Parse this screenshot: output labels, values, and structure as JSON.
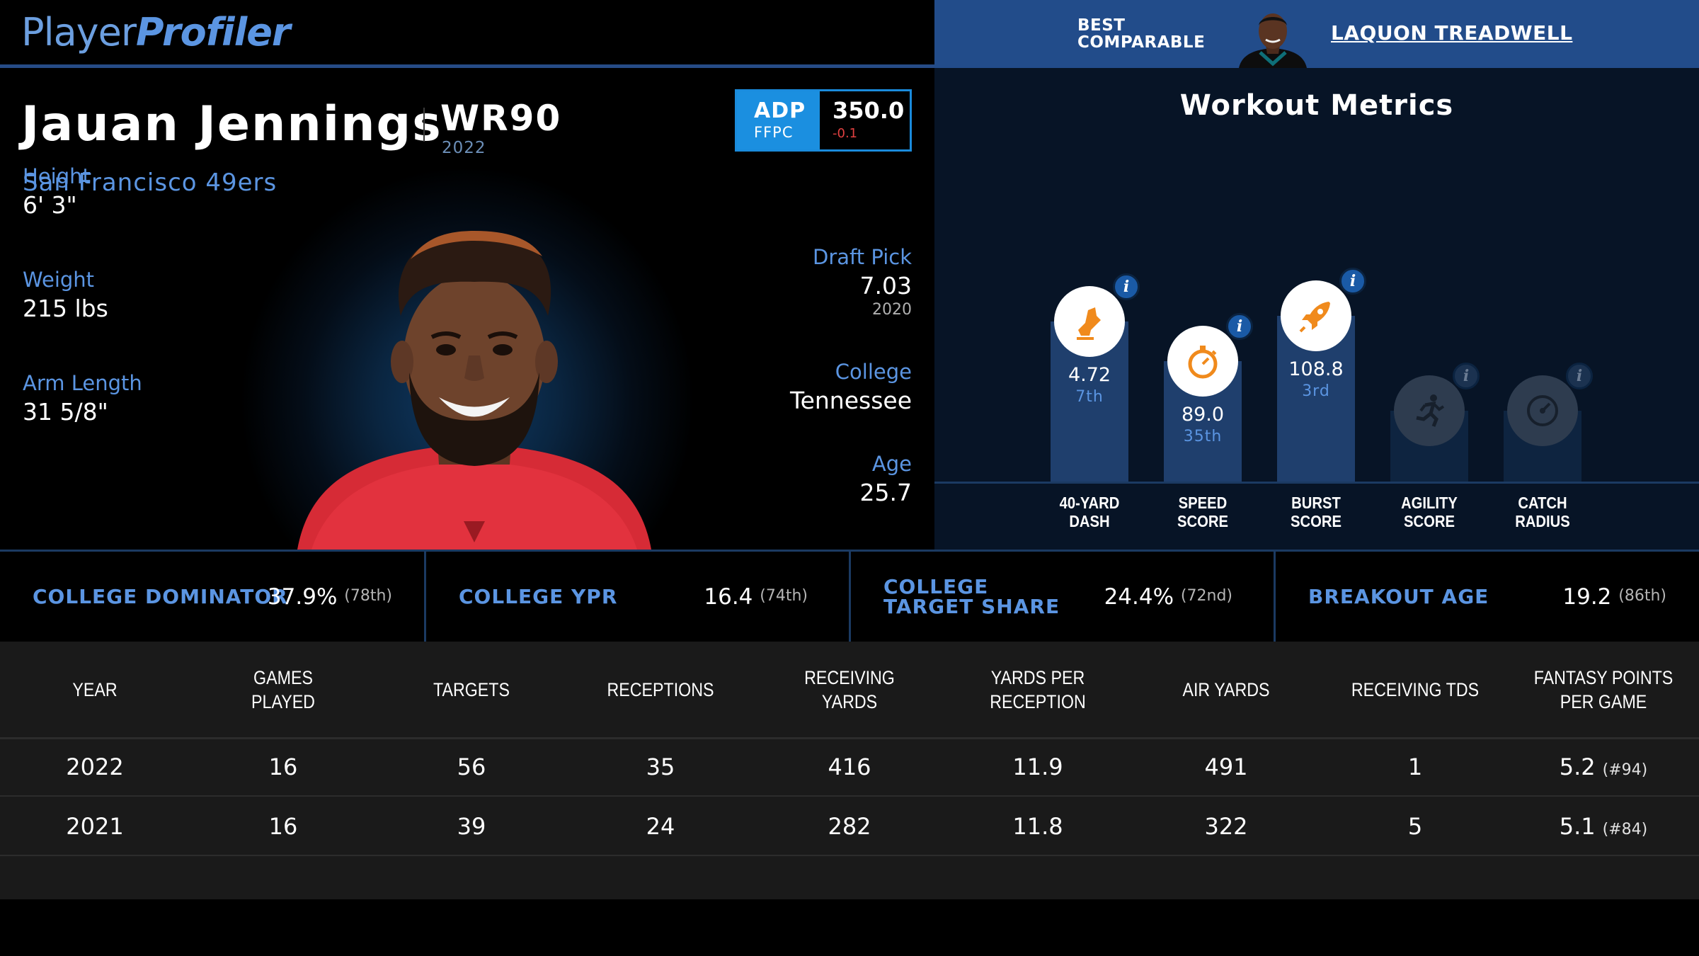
{
  "header": {
    "logo_part1": "Player",
    "logo_part2": "Profiler",
    "comparable_line1": "BEST",
    "comparable_line2": "COMPARABLE",
    "comparable_name": "LAQUON TREADWELL"
  },
  "player": {
    "name": "Jauan Jennings",
    "position_rank": "WR90",
    "rank_year": "2022",
    "team": "San Francisco 49ers",
    "adp": {
      "label": "ADP",
      "source": "FFPC",
      "value": "350.0",
      "change": "-0.1"
    },
    "height": {
      "label": "Height",
      "value": "6' 3\""
    },
    "weight": {
      "label": "Weight",
      "value": "215 lbs"
    },
    "arm_length": {
      "label": "Arm Length",
      "value": "31 5/8\""
    },
    "draft_pick": {
      "label": "Draft Pick",
      "value": "7.03",
      "sub": "2020"
    },
    "college": {
      "label": "College",
      "value": "Tennessee"
    },
    "age": {
      "label": "Age",
      "value": "25.7"
    }
  },
  "workout": {
    "title": "Workout Metrics",
    "metrics": [
      {
        "label1": "40-YARD",
        "label2": "DASH",
        "value": "4.72",
        "rank": "7th",
        "level": 0.07,
        "icon": "shoe-icon",
        "available": true
      },
      {
        "label1": "SPEED",
        "label2": "SCORE",
        "value": "89.0",
        "rank": "35th",
        "level": 0.35,
        "icon": "stopwatch-icon",
        "available": true
      },
      {
        "label1": "BURST",
        "label2": "SCORE",
        "value": "108.8",
        "rank": "3rd",
        "level": 0.03,
        "icon": "rocket-icon",
        "available": true
      },
      {
        "label1": "AGILITY",
        "label2": "SCORE",
        "value": "",
        "rank": "",
        "level": 0,
        "icon": "runner-icon",
        "available": false
      },
      {
        "label1": "CATCH",
        "label2": "RADIUS",
        "value": "",
        "rank": "",
        "level": 0,
        "icon": "gauge-icon",
        "available": false
      }
    ],
    "accent_icon_color": "#f08a1c"
  },
  "college_stats": [
    {
      "label": "COLLEGE DOMINATOR",
      "value": "37.9%",
      "rank": "(78th)"
    },
    {
      "label": "COLLEGE YPR",
      "value": "16.4",
      "rank": "(74th)"
    },
    {
      "label": "COLLEGE TARGET SHARE",
      "value": "24.4%",
      "rank": "(72nd)"
    },
    {
      "label": "BREAKOUT AGE",
      "value": "19.2",
      "rank": "(86th)"
    }
  ],
  "stats_table": {
    "columns": [
      "YEAR",
      "GAMES PLAYED",
      "TARGETS",
      "RECEPTIONS",
      "RECEIVING YARDS",
      "YARDS PER RECEPTION",
      "AIR YARDS",
      "RECEIVING TDS",
      "FANTASY POINTS PER GAME"
    ],
    "rows": [
      {
        "year": "2022",
        "games": "16",
        "targets": "56",
        "receptions": "35",
        "yards": "416",
        "ypr": "11.9",
        "air_yards": "491",
        "tds": "1",
        "fppg": "5.2",
        "fppg_rank": "(#94)"
      },
      {
        "year": "2021",
        "games": "16",
        "targets": "39",
        "receptions": "24",
        "yards": "282",
        "ypr": "11.8",
        "air_yards": "322",
        "tds": "5",
        "fppg": "5.1",
        "fppg_rank": "(#84)"
      }
    ]
  },
  "colors": {
    "accent_blue": "#5b95e2",
    "adp_blue": "#1b8fe0",
    "comparable_bar": "#224c8a",
    "negative": "#e04040"
  }
}
